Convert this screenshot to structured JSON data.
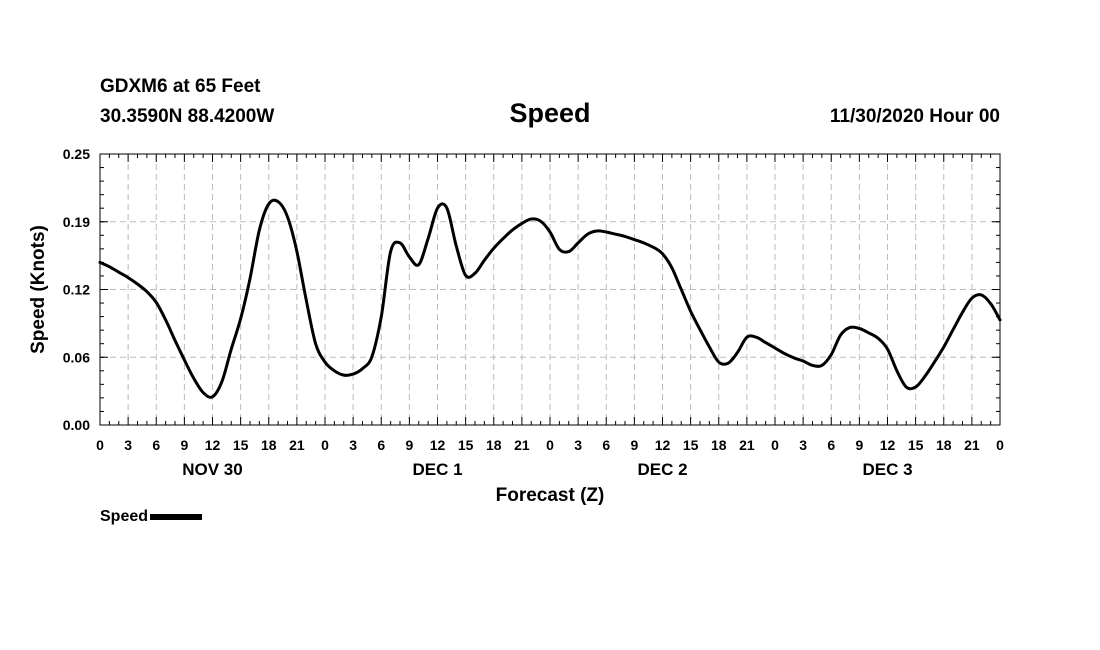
{
  "header": {
    "station": "GDXM6 at 65 Feet",
    "coords": "30.3590N 88.4200W",
    "title": "Speed",
    "run": "11/30/2020 Hour 00"
  },
  "legend": {
    "label": "Speed",
    "color": "#000000"
  },
  "chart_data": {
    "type": "line",
    "title": "Speed",
    "xlabel": "Forecast (Z)",
    "ylabel": "Speed (Knots)",
    "xlim": [
      0,
      96
    ],
    "ylim": [
      0,
      0.25
    ],
    "yticks": [
      "0.00",
      "0.06",
      "0.12",
      "0.19",
      "0.25"
    ],
    "ytick_values": [
      0,
      0.0625,
      0.125,
      0.1875,
      0.25
    ],
    "xtick_labels": [
      "0",
      "3",
      "6",
      "9",
      "12",
      "15",
      "18",
      "21",
      "0",
      "3",
      "6",
      "9",
      "12",
      "15",
      "18",
      "21",
      "0",
      "3",
      "6",
      "9",
      "12",
      "15",
      "18",
      "21",
      "0",
      "3",
      "6",
      "9",
      "12",
      "15",
      "18",
      "21",
      "0"
    ],
    "day_labels": [
      {
        "label": "NOV 30",
        "hour": 12
      },
      {
        "label": "DEC 1",
        "hour": 36
      },
      {
        "label": "DEC 2",
        "hour": 60
      },
      {
        "label": "DEC 3",
        "hour": 84
      }
    ],
    "grid": true,
    "legend_position": "bottom-left",
    "series": [
      {
        "name": "Speed",
        "color": "#000000",
        "x": [
          0,
          1,
          2,
          3,
          4,
          5,
          6,
          7,
          8,
          9,
          10,
          11,
          12,
          13,
          14,
          15,
          16,
          17,
          18,
          19,
          20,
          21,
          22,
          23,
          24,
          25,
          26,
          27,
          28,
          29,
          30,
          31,
          32,
          33,
          34,
          35,
          36,
          37,
          38,
          39,
          40,
          41,
          42,
          43,
          44,
          45,
          46,
          47,
          48,
          49,
          50,
          51,
          52,
          53,
          54,
          55,
          56,
          57,
          58,
          59,
          60,
          61,
          62,
          63,
          64,
          65,
          66,
          67,
          68,
          69,
          70,
          71,
          72,
          73,
          74,
          75,
          76,
          77,
          78,
          79,
          80,
          81,
          82,
          83,
          84,
          85,
          86,
          87,
          88,
          89,
          90,
          91,
          92,
          93,
          94,
          95,
          96
        ],
        "y": [
          0.15,
          0.146,
          0.141,
          0.136,
          0.13,
          0.123,
          0.113,
          0.097,
          0.078,
          0.06,
          0.043,
          0.03,
          0.026,
          0.04,
          0.07,
          0.098,
          0.135,
          0.18,
          0.204,
          0.206,
          0.192,
          0.16,
          0.115,
          0.075,
          0.058,
          0.05,
          0.046,
          0.047,
          0.052,
          0.063,
          0.1,
          0.16,
          0.168,
          0.155,
          0.148,
          0.172,
          0.2,
          0.2,
          0.165,
          0.138,
          0.14,
          0.152,
          0.163,
          0.172,
          0.18,
          0.186,
          0.19,
          0.188,
          0.178,
          0.162,
          0.16,
          0.168,
          0.176,
          0.179,
          0.178,
          0.176,
          0.174,
          0.171,
          0.168,
          0.164,
          0.158,
          0.145,
          0.125,
          0.105,
          0.088,
          0.072,
          0.058,
          0.057,
          0.067,
          0.081,
          0.081,
          0.076,
          0.071,
          0.066,
          0.062,
          0.059,
          0.055,
          0.055,
          0.065,
          0.083,
          0.09,
          0.089,
          0.085,
          0.08,
          0.07,
          0.05,
          0.035,
          0.035,
          0.045,
          0.058,
          0.072,
          0.088,
          0.104,
          0.117,
          0.12,
          0.112,
          0.097
        ]
      }
    ]
  }
}
